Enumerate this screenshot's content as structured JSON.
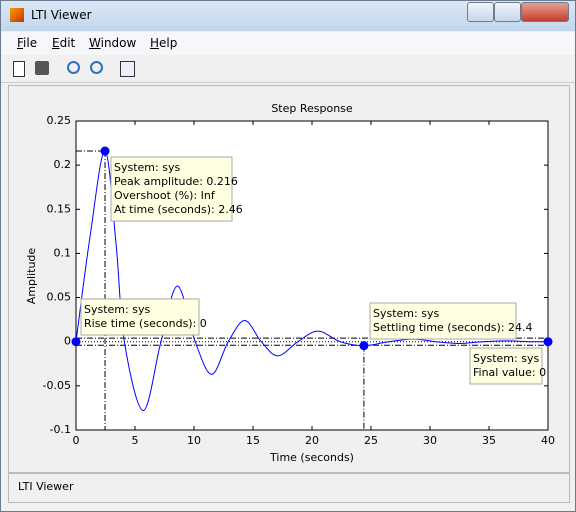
{
  "window_title": "LTI Viewer",
  "menu": [
    "File",
    "Edit",
    "Window",
    "Help"
  ],
  "status": "LTI Viewer",
  "chart_data": {
    "type": "line",
    "title": "Step Response",
    "xlabel": "Time (seconds)",
    "ylabel": "Amplitude",
    "xlim": [
      0,
      40
    ],
    "ylim": [
      -0.1,
      0.25
    ],
    "xticks": [
      0,
      5,
      10,
      15,
      20,
      25,
      30,
      35,
      40
    ],
    "yticks": [
      -0.1,
      -0.05,
      0,
      0.05,
      0.1,
      0.15,
      0.2,
      0.25
    ],
    "series": [
      {
        "name": "sys",
        "color": "#0000ff",
        "x": [
          0,
          1.2,
          2.46,
          3.4,
          4.1,
          5.7,
          7.2,
          8.6,
          10.1,
          11.5,
          12.9,
          14.3,
          15.7,
          17.1,
          18.8,
          20.5,
          22.4,
          24.4,
          26.5,
          28.6,
          30.5,
          32.5,
          34.5,
          36.5,
          38.5,
          40
        ],
        "values": [
          0,
          0.12,
          0.216,
          0.11,
          0,
          -0.078,
          0,
          0.063,
          0,
          -0.037,
          0,
          0.024,
          0,
          -0.016,
          0,
          0.012,
          0,
          -0.0045,
          0,
          0.003,
          0,
          -0.002,
          0,
          0.001,
          0,
          0
        ]
      }
    ],
    "settling_bounds": [
      -0.004,
      0.004
    ],
    "datatips": [
      {
        "x": 2.46,
        "y": 0.216,
        "lines": [
          "System: sys",
          "Peak amplitude: 0.216",
          "Overshoot (%): Inf",
          "At time (seconds): 2.46"
        ]
      },
      {
        "x": 0,
        "y": 0,
        "lines": [
          "System: sys",
          "Rise time (seconds): 0"
        ]
      },
      {
        "x": 24.4,
        "y": -0.0045,
        "lines": [
          "System: sys",
          "Settling time (seconds): 24.4"
        ]
      },
      {
        "x": 40,
        "y": 0,
        "lines": [
          "System: sys",
          "Final value: 0"
        ]
      }
    ]
  }
}
